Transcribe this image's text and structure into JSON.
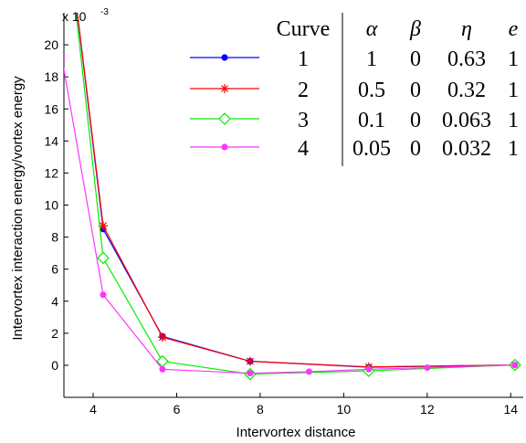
{
  "chart_data": {
    "type": "line",
    "xlabel": "Intervortex distance",
    "ylabel": "Intervortex interaction energy/vortex energy",
    "y_multiplier": "x 10",
    "y_multiplier_exp": "-3",
    "xlim": [
      3.3,
      14.3
    ],
    "ylim": [
      -2,
      22
    ],
    "xticks": [
      4,
      6,
      8,
      10,
      12,
      14
    ],
    "yticks": [
      0,
      2,
      4,
      6,
      8,
      10,
      12,
      14,
      16,
      18,
      20
    ],
    "grid": false,
    "legend": "top",
    "series": [
      {
        "name": "1",
        "color": "#0000ff",
        "marker": "dot",
        "x": [
          3.25,
          4.24,
          5.66,
          7.76,
          10.6,
          14.1
        ],
        "y": [
          30,
          8.5,
          1.8,
          0.25,
          -0.12,
          0.02
        ]
      },
      {
        "name": "2",
        "color": "#ff0000",
        "marker": "star",
        "x": [
          3.25,
          4.24,
          5.66,
          7.76,
          10.6,
          14.1
        ],
        "y": [
          30,
          8.7,
          1.75,
          0.25,
          -0.1,
          0.02
        ]
      },
      {
        "name": "3",
        "color": "#00ee00",
        "marker": "diamond",
        "x": [
          3.25,
          4.24,
          5.66,
          7.76,
          10.6,
          14.1
        ],
        "y": [
          30,
          6.7,
          0.25,
          -0.55,
          -0.35,
          0.02
        ]
      },
      {
        "name": "4",
        "color": "#ff33ff",
        "marker": "dot",
        "x": [
          3.25,
          4.24,
          5.66,
          7.76,
          9.17,
          10.6,
          12.0,
          14.1
        ],
        "y": [
          19.2,
          4.4,
          -0.25,
          -0.5,
          -0.4,
          -0.25,
          -0.15,
          0.02
        ]
      }
    ],
    "legend_table": {
      "headers": [
        "Curve",
        "α",
        "β",
        "η",
        "e"
      ],
      "rows": [
        [
          "1",
          "1",
          "0",
          "0.63",
          "1"
        ],
        [
          "2",
          "0.5",
          "0",
          "0.32",
          "1"
        ],
        [
          "3",
          "0.1",
          "0",
          "0.063",
          "1"
        ],
        [
          "4",
          "0.05",
          "0",
          "0.032",
          "1"
        ]
      ]
    }
  }
}
